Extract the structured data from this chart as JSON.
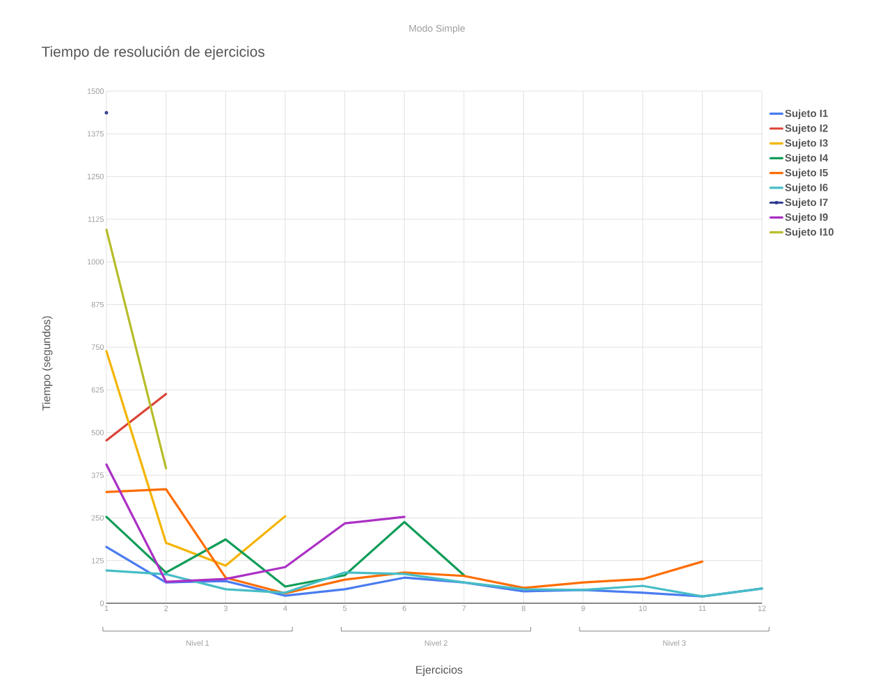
{
  "chart_data": {
    "type": "line",
    "title": "Tiempo de resolución de ejercicios",
    "subtitle": "Modo Simple",
    "xlabel": "Ejercicios",
    "ylabel": "Tiempo (segundos)",
    "categories": [
      "1",
      "2",
      "3",
      "4",
      "5",
      "6",
      "7",
      "8",
      "9",
      "10",
      "11",
      "12"
    ],
    "ylim": [
      0,
      1500
    ],
    "yticks": [
      0,
      125,
      250,
      375,
      500,
      625,
      750,
      875,
      1000,
      1125,
      1250,
      1375,
      1500
    ],
    "grid": true,
    "legend": "right",
    "line_style": "solid",
    "annotations": [
      "Nivel 1",
      "Nivel 2",
      "Nivel 3"
    ],
    "series": [
      {
        "name": "Sujeto I1",
        "color": "#4a7cf0",
        "values": [
          165,
          61,
          65,
          22,
          41,
          75,
          61,
          35,
          39,
          31,
          20,
          43
        ]
      },
      {
        "name": "Sujeto I2",
        "color": "#db4437",
        "values": [
          477,
          613,
          null,
          null,
          null,
          null,
          null,
          null,
          null,
          null,
          null,
          null
        ]
      },
      {
        "name": "Sujeto I3",
        "color": "#f4b400",
        "values": [
          738,
          177,
          110,
          255,
          null,
          null,
          null,
          null,
          null,
          null,
          null,
          null
        ]
      },
      {
        "name": "Sujeto I4",
        "color": "#0f9d58",
        "values": [
          253,
          90,
          187,
          49,
          82,
          238,
          82,
          null,
          null,
          null,
          null,
          null
        ]
      },
      {
        "name": "Sujeto I5",
        "color": "#ff6d00",
        "values": [
          326,
          334,
          75,
          29,
          69,
          90,
          80,
          45,
          61,
          71,
          122,
          null
        ]
      },
      {
        "name": "Sujeto I6",
        "color": "#46bdc6",
        "values": [
          96,
          85,
          41,
          31,
          90,
          86,
          61,
          41,
          39,
          51,
          20,
          43
        ]
      },
      {
        "name": "Sujeto I7",
        "color": "#2f3a8f",
        "marker": "circle",
        "values": [
          1437,
          null,
          null,
          null,
          null,
          null,
          null,
          null,
          null,
          null,
          null,
          null
        ]
      },
      {
        "name": "Sujeto I9",
        "color": "#ab30c4",
        "values": [
          406,
          63,
          71,
          106,
          234,
          253,
          null,
          null,
          null,
          null,
          null,
          null
        ]
      },
      {
        "name": "Sujeto I10",
        "color": "#b7bd2a",
        "values": [
          1094,
          395,
          null,
          null,
          null,
          null,
          null,
          null,
          null,
          null,
          null,
          null
        ]
      }
    ]
  }
}
